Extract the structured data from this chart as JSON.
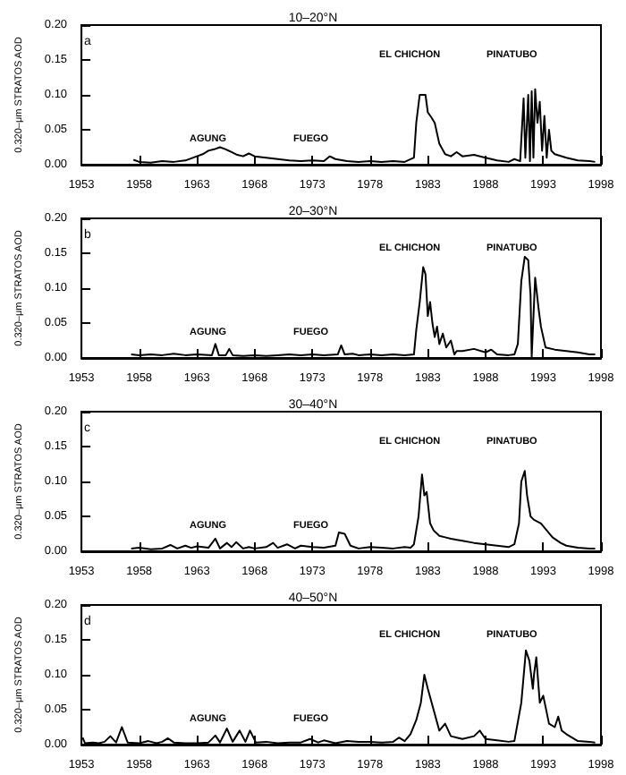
{
  "chart_data": [
    {
      "type": "line",
      "title": "10–20°N",
      "ylabel": "0.320–μm STRATOS AOD",
      "annotations": [
        "a",
        "AGUNG",
        "FUEGO",
        "EL CHICHON",
        "PINATUBO"
      ],
      "xlim": [
        1953,
        1998
      ],
      "ylim": [
        0,
        0.2
      ],
      "xticks": [
        1953,
        1958,
        1963,
        1968,
        1973,
        1978,
        1983,
        1988,
        1993,
        1998
      ],
      "yticks": [
        {
          "value": 0,
          "label": "0.00"
        },
        {
          "value": 0.05,
          "label": "0.05"
        },
        {
          "value": 0.1,
          "label": "0.10"
        },
        {
          "value": 0.15,
          "label": "0.15"
        },
        {
          "value": 0.2,
          "label": "0.20"
        }
      ],
      "grid": false,
      "marker": "none",
      "line_style": "solid",
      "series": [
        {
          "color": "#000000",
          "x": [
            1957.5,
            1958,
            1959,
            1960,
            1961,
            1962,
            1963,
            1963.5,
            1964,
            1964.5,
            1965,
            1965.5,
            1966,
            1966.5,
            1967,
            1967.5,
            1968,
            1969,
            1970,
            1971,
            1972,
            1973,
            1974,
            1974.5,
            1975,
            1976,
            1977,
            1978,
            1979,
            1980,
            1981,
            1981.8,
            1982,
            1982.3,
            1982.8,
            1983,
            1983.3,
            1983.6,
            1984,
            1984.5,
            1985,
            1985.5,
            1986,
            1987,
            1988,
            1989,
            1990,
            1990.5,
            1991,
            1991.3,
            1991.45,
            1991.7,
            1991.85,
            1992,
            1992.15,
            1992.3,
            1992.5,
            1992.7,
            1992.9,
            1993.1,
            1993.3,
            1993.5,
            1993.7,
            1994,
            1995,
            1996,
            1997,
            1997.5
          ],
          "values": [
            0.007,
            0.004,
            0.003,
            0.005,
            0.004,
            0.006,
            0.012,
            0.015,
            0.02,
            0.022,
            0.025,
            0.022,
            0.018,
            0.014,
            0.012,
            0.016,
            0.012,
            0.01,
            0.008,
            0.006,
            0.005,
            0.006,
            0.005,
            0.012,
            0.008,
            0.005,
            0.004,
            0.005,
            0.004,
            0.005,
            0.004,
            0.01,
            0.06,
            0.1,
            0.1,
            0.075,
            0.068,
            0.06,
            0.03,
            0.015,
            0.012,
            0.018,
            0.012,
            0.014,
            0.01,
            0.006,
            0.004,
            0.008,
            0.005,
            0.095,
            0.01,
            0.1,
            0.005,
            0.105,
            0.01,
            0.108,
            0.06,
            0.09,
            0.02,
            0.07,
            0.01,
            0.05,
            0.02,
            0.015,
            0.01,
            0.006,
            0.005,
            0.004
          ]
        }
      ]
    },
    {
      "type": "line",
      "title": "20–30°N",
      "ylabel": "0.320–μm STRATOS AOD",
      "annotations": [
        "b",
        "AGUNG",
        "FUEGO",
        "EL CHICHON",
        "PINATUBO"
      ],
      "xlim": [
        1953,
        1998
      ],
      "ylim": [
        0,
        0.2
      ],
      "xticks": [
        1953,
        1958,
        1963,
        1968,
        1973,
        1978,
        1983,
        1988,
        1993,
        1998
      ],
      "yticks": [
        {
          "value": 0,
          "label": "0.00"
        },
        {
          "value": 0.05,
          "label": "0.05"
        },
        {
          "value": 0.1,
          "label": "0.10"
        },
        {
          "value": 0.15,
          "label": "0.15"
        },
        {
          "value": 0.2,
          "label": "0.20"
        }
      ],
      "grid": false,
      "marker": "none",
      "line_style": "solid",
      "series": [
        {
          "color": "#000000",
          "x": [
            1957.3,
            1958,
            1959,
            1960,
            1961,
            1962,
            1963,
            1964.3,
            1964.6,
            1964.9,
            1965.5,
            1965.8,
            1966.1,
            1967,
            1968,
            1969,
            1970,
            1971,
            1972,
            1973,
            1974,
            1975.2,
            1975.5,
            1975.8,
            1976.5,
            1977,
            1978,
            1979,
            1980,
            1981,
            1981.8,
            1982,
            1982.3,
            1982.6,
            1982.8,
            1983,
            1983.2,
            1983.4,
            1983.6,
            1983.8,
            1984,
            1984.3,
            1984.6,
            1985,
            1985.3,
            1985.5,
            1986,
            1987,
            1988,
            1988.5,
            1989,
            1990,
            1990.5,
            1990.8,
            1991.1,
            1991.4,
            1991.7,
            1991.9,
            1992,
            1992.3,
            1992.6,
            1992.8,
            1993.2,
            1994,
            1995,
            1996,
            1997,
            1997.5
          ],
          "values": [
            0.005,
            0.004,
            0.005,
            0.004,
            0.006,
            0.004,
            0.005,
            0.004,
            0.02,
            0.004,
            0.004,
            0.013,
            0.004,
            0.003,
            0.004,
            0.003,
            0.004,
            0.005,
            0.004,
            0.005,
            0.004,
            0.005,
            0.018,
            0.005,
            0.006,
            0.004,
            0.005,
            0.004,
            0.005,
            0.004,
            0.005,
            0.04,
            0.08,
            0.13,
            0.12,
            0.06,
            0.08,
            0.05,
            0.03,
            0.045,
            0.02,
            0.035,
            0.015,
            0.025,
            0.005,
            0.01,
            0.01,
            0.013,
            0.008,
            0.012,
            0.005,
            0.004,
            0.005,
            0.02,
            0.11,
            0.145,
            0.14,
            0.09,
            0.002,
            0.115,
            0.07,
            0.045,
            0.015,
            0.012,
            0.01,
            0.008,
            0.005,
            0.005
          ]
        }
      ]
    },
    {
      "type": "line",
      "title": "30–40°N",
      "ylabel": "0.320–μm STRATOS AOD",
      "annotations": [
        "c",
        "AGUNG",
        "FUEGO",
        "EL CHICHON",
        "PINATUBO"
      ],
      "xlim": [
        1953,
        1998
      ],
      "ylim": [
        0,
        0.2
      ],
      "xticks": [
        1953,
        1958,
        1963,
        1968,
        1973,
        1978,
        1983,
        1988,
        1993,
        1998
      ],
      "yticks": [
        {
          "value": 0,
          "label": "0.00"
        },
        {
          "value": 0.05,
          "label": "0.05"
        },
        {
          "value": 0.1,
          "label": "0.10"
        },
        {
          "value": 0.15,
          "label": "0.15"
        },
        {
          "value": 0.2,
          "label": "0.20"
        }
      ],
      "grid": false,
      "marker": "none",
      "line_style": "solid",
      "series": [
        {
          "color": "#000000",
          "x": [
            1957.3,
            1958,
            1959,
            1960,
            1960.7,
            1961.3,
            1962,
            1962.5,
            1963,
            1964,
            1964.6,
            1965,
            1965.6,
            1966,
            1966.4,
            1967,
            1967.5,
            1968,
            1969,
            1969.6,
            1970,
            1970.8,
            1971.5,
            1972,
            1973,
            1974,
            1975,
            1975.3,
            1975.8,
            1976.3,
            1977,
            1978,
            1979,
            1980,
            1981,
            1981.5,
            1981.8,
            1982.2,
            1982.5,
            1982.7,
            1982.9,
            1983.2,
            1983.5,
            1984,
            1984.5,
            1985,
            1986,
            1987,
            1988,
            1989,
            1990,
            1990.5,
            1990.9,
            1991.1,
            1991.4,
            1991.6,
            1991.9,
            1992.2,
            1992.8,
            1993.3,
            1993.8,
            1994.5,
            1995,
            1996,
            1997,
            1997.5
          ],
          "values": [
            0.004,
            0.005,
            0.003,
            0.004,
            0.009,
            0.004,
            0.008,
            0.005,
            0.007,
            0.005,
            0.018,
            0.004,
            0.012,
            0.006,
            0.013,
            0.004,
            0.006,
            0.004,
            0.006,
            0.012,
            0.005,
            0.01,
            0.004,
            0.008,
            0.006,
            0.005,
            0.008,
            0.027,
            0.025,
            0.008,
            0.004,
            0.006,
            0.005,
            0.004,
            0.006,
            0.005,
            0.01,
            0.05,
            0.11,
            0.08,
            0.085,
            0.04,
            0.03,
            0.022,
            0.02,
            0.018,
            0.015,
            0.012,
            0.01,
            0.008,
            0.006,
            0.01,
            0.04,
            0.1,
            0.115,
            0.08,
            0.05,
            0.045,
            0.04,
            0.03,
            0.02,
            0.012,
            0.008,
            0.005,
            0.004,
            0.004
          ]
        }
      ]
    },
    {
      "type": "line",
      "title": "40–50°N",
      "ylabel": "0.320–μm STRATOS AOD",
      "annotations": [
        "d",
        "AGUNG",
        "FUEGO",
        "EL CHICHON",
        "PINATUBO"
      ],
      "xlim": [
        1953,
        1998
      ],
      "ylim": [
        0,
        0.2
      ],
      "xticks": [
        1953,
        1958,
        1963,
        1968,
        1973,
        1978,
        1983,
        1988,
        1993,
        1998
      ],
      "yticks": [
        {
          "value": 0,
          "label": "0.00"
        },
        {
          "value": 0.05,
          "label": "0.05"
        },
        {
          "value": 0.1,
          "label": "0.10"
        },
        {
          "value": 0.15,
          "label": "0.15"
        },
        {
          "value": 0.2,
          "label": "0.20"
        }
      ],
      "grid": false,
      "marker": "none",
      "line_style": "solid",
      "series": [
        {
          "color": "#000000",
          "x": [
            1953.1,
            1953.3,
            1954,
            1954.5,
            1955,
            1955.5,
            1956,
            1956.5,
            1957,
            1958,
            1958.8,
            1959.5,
            1960,
            1960.5,
            1961,
            1962,
            1963,
            1964,
            1964.6,
            1965,
            1965.6,
            1966.1,
            1966.7,
            1967.2,
            1967.6,
            1968.1,
            1969,
            1970,
            1971,
            1972,
            1972.8,
            1973.5,
            1974,
            1975,
            1976,
            1977,
            1978,
            1979,
            1980,
            1980.5,
            1981,
            1981.5,
            1982,
            1982.4,
            1982.7,
            1983,
            1983.5,
            1984,
            1984.5,
            1985,
            1985.5,
            1986,
            1987,
            1987.5,
            1988,
            1989,
            1990,
            1990.5,
            1991.1,
            1991.5,
            1991.8,
            1992.1,
            1992.2,
            1992.4,
            1992.7,
            1993,
            1993.5,
            1994,
            1994.3,
            1994.6,
            1995,
            1996,
            1997,
            1997.5
          ],
          "values": [
            0.01,
            0.002,
            0.003,
            0.002,
            0.004,
            0.012,
            0.003,
            0.025,
            0.003,
            0.002,
            0.005,
            0.002,
            0.004,
            0.009,
            0.003,
            0.002,
            0.002,
            0.003,
            0.013,
            0.003,
            0.023,
            0.004,
            0.02,
            0.004,
            0.02,
            0.003,
            0.004,
            0.002,
            0.003,
            0.003,
            0.008,
            0.003,
            0.006,
            0.002,
            0.005,
            0.004,
            0.004,
            0.003,
            0.004,
            0.01,
            0.005,
            0.015,
            0.035,
            0.06,
            0.1,
            0.08,
            0.05,
            0.02,
            0.03,
            0.012,
            0.01,
            0.008,
            0.012,
            0.02,
            0.008,
            0.006,
            0.004,
            0.005,
            0.06,
            0.135,
            0.12,
            0.08,
            0.1,
            0.125,
            0.06,
            0.07,
            0.03,
            0.025,
            0.04,
            0.02,
            0.015,
            0.005,
            0.004,
            0.003
          ]
        }
      ]
    }
  ]
}
